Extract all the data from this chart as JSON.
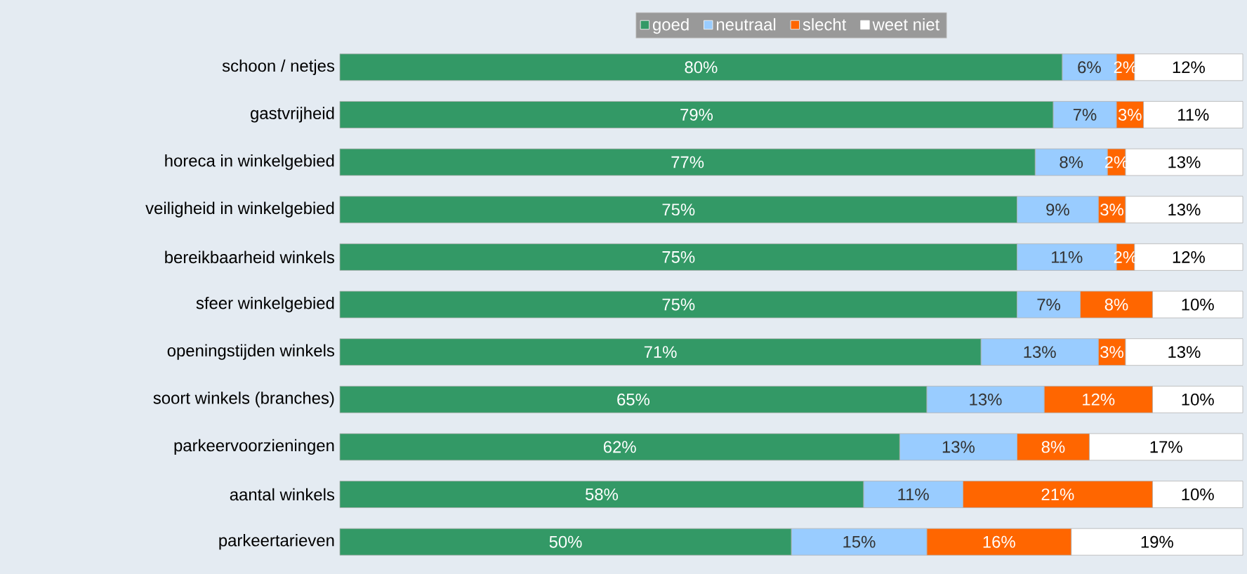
{
  "chart_data": {
    "type": "bar",
    "orientation": "horizontal",
    "stacked": true,
    "legend": "top",
    "categories": [
      "schoon / netjes",
      "gastvrijheid",
      "horeca in winkelgebied",
      "veiligheid in winkelgebied",
      "bereikbaarheid winkels",
      "sfeer winkelgebied",
      "openingstijden winkels",
      "soort winkels (branches)",
      "parkeervoorzieningen",
      "aantal winkels",
      "parkeertarieven"
    ],
    "series": [
      {
        "name": "goed",
        "color": "#339966",
        "values": [
          80,
          79,
          77,
          75,
          75,
          75,
          71,
          65,
          62,
          58,
          50
        ],
        "value_labels": [
          "80%",
          "79%",
          "77%",
          "75%",
          "75%",
          "75%",
          "71%",
          "65%",
          "62%",
          "58%",
          "50%"
        ]
      },
      {
        "name": "neutraal",
        "color": "#99ccff",
        "values": [
          6,
          7,
          8,
          9,
          11,
          7,
          13,
          13,
          13,
          11,
          15
        ],
        "value_labels": [
          "6%",
          "7%",
          "8%",
          "9%",
          "11%",
          "7%",
          "13%",
          "13%",
          "13%",
          "11%",
          "15%"
        ]
      },
      {
        "name": "slecht",
        "color": "#ff6600",
        "values": [
          2,
          3,
          2,
          3,
          2,
          8,
          3,
          12,
          8,
          21,
          16
        ],
        "value_labels": [
          "2%",
          "3%",
          "2%",
          "3%",
          "2%",
          "8%",
          "3%",
          "12%",
          "8%",
          "21%",
          "16%"
        ]
      },
      {
        "name": "weet niet",
        "color": "#ffffff",
        "values": [
          12,
          11,
          13,
          13,
          12,
          10,
          13,
          10,
          17,
          10,
          19
        ],
        "value_labels": [
          "12%",
          "11%",
          "13%",
          "13%",
          "12%",
          "10%",
          "13%",
          "10%",
          "17%",
          "10%",
          "19%"
        ]
      }
    ]
  }
}
